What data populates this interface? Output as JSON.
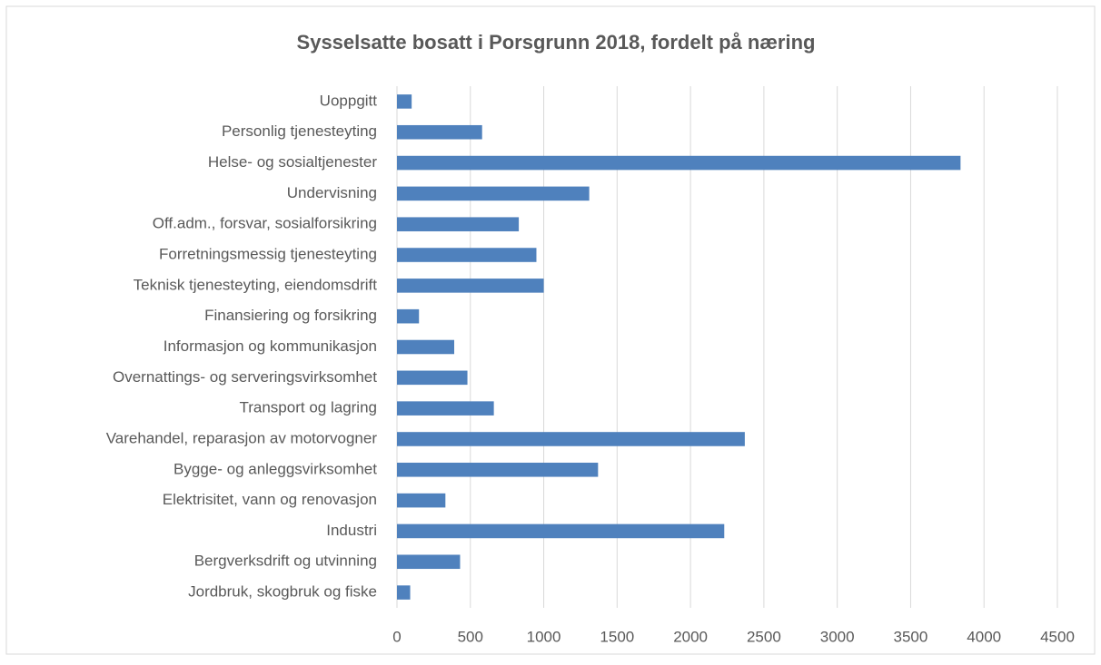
{
  "chart_data": {
    "type": "barh",
    "title": "Sysselsatte bosatt i Porsgrunn 2018, fordelt på næring",
    "categories": [
      "Jordbruk, skogbruk og fiske",
      "Bergverksdrift og utvinning",
      "Industri",
      "Elektrisitet, vann og renovasjon",
      "Bygge- og anleggsvirksomhet",
      "Varehandel, reparasjon av motorvogner",
      "Transport og lagring",
      "Overnattings- og serveringsvirksomhet",
      "Informasjon og kommunikasjon",
      "Finansiering og forsikring",
      "Teknisk tjenesteyting, eiendomsdrift",
      "Forretningsmessig tjenesteyting",
      "Off.adm., forsvar, sosialforsikring",
      "Undervisning",
      "Helse- og sosialtjenester",
      "Personlig tjenesteyting",
      "Uoppgitt"
    ],
    "values": [
      90,
      430,
      2230,
      330,
      1370,
      2370,
      660,
      480,
      390,
      150,
      1000,
      950,
      830,
      1310,
      3840,
      580,
      100
    ],
    "color": "#4f81bd",
    "xlim": [
      0,
      4500
    ],
    "xticks": [
      0,
      500,
      1000,
      1500,
      2000,
      2500,
      3000,
      3500,
      4000,
      4500
    ],
    "grid": true
  }
}
